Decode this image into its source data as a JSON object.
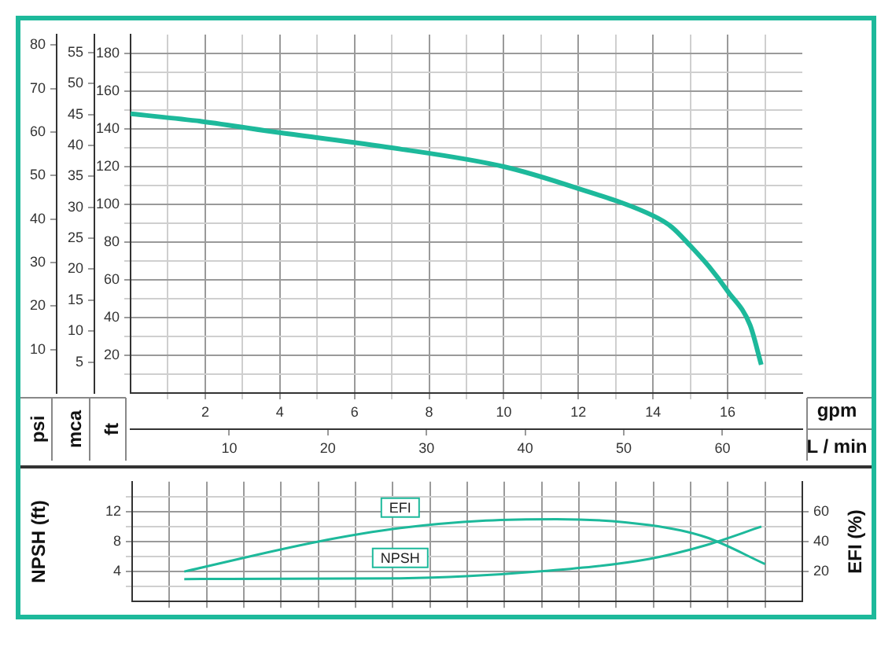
{
  "chart_data": [
    {
      "type": "line",
      "xlabel": "gpm",
      "x2label": "L / min",
      "ylabel": "ft",
      "y2label": "mca",
      "y3label": "psi",
      "xlim": [
        0,
        18
      ],
      "xticks": [
        {
          "value": 1,
          "label": null
        },
        2,
        {
          "value": 3,
          "label": null
        },
        4,
        {
          "value": 5,
          "label": null
        },
        6,
        {
          "value": 7,
          "label": null
        },
        8,
        {
          "value": 9,
          "label": null
        },
        10,
        {
          "value": 11,
          "label": null
        },
        12,
        {
          "value": 13,
          "label": null
        },
        14,
        {
          "value": 15,
          "label": null
        },
        16,
        {
          "value": 17,
          "label": null
        }
      ],
      "x2lim": [
        0,
        68.1
      ],
      "x2ticks": [
        10,
        20,
        30,
        40,
        50,
        60
      ],
      "ylim": [
        0,
        190
      ],
      "yticks": [
        {
          "value": 10,
          "label": null
        },
        20,
        {
          "value": 30,
          "label": null
        },
        40,
        {
          "value": 50,
          "label": null
        },
        60,
        {
          "value": 70,
          "label": null
        },
        80,
        {
          "value": 90,
          "label": null
        },
        100,
        {
          "value": 110,
          "label": null
        },
        120,
        {
          "value": 130,
          "label": null
        },
        140,
        {
          "value": 150,
          "label": null
        },
        160,
        {
          "value": 170,
          "label": null
        },
        180
      ],
      "y2lim": [
        0,
        57.9
      ],
      "y2ticks": [
        5,
        10,
        15,
        20,
        25,
        30,
        35,
        40,
        45,
        50,
        55
      ],
      "y3lim": [
        0,
        82.4
      ],
      "y3ticks": [
        10,
        20,
        30,
        40,
        50,
        60,
        70,
        80
      ],
      "grid": true,
      "legend": false,
      "marker": "none",
      "series": [
        {
          "color": "#1db99b",
          "x": [
            0,
            1.9,
            4,
            7,
            10,
            11.9,
            14,
            14.5,
            15,
            15.5,
            16,
            16.6,
            16.9
          ],
          "values": [
            148,
            144,
            138,
            130,
            120,
            109,
            94,
            88,
            78,
            67,
            54,
            36,
            15
          ]
        }
      ]
    },
    {
      "type": "line",
      "ylabel": "NPSH (ft)",
      "y2label": "EFI (%)",
      "xlim": [
        0,
        18
      ],
      "xticks": [
        1,
        2,
        3,
        4,
        5,
        6,
        7,
        8,
        9,
        10,
        11,
        12,
        13,
        14,
        15,
        16,
        17
      ],
      "tick_labels": "y",
      "ylim": [
        0,
        16
      ],
      "yticks": [
        {
          "value": 2,
          "label": null
        },
        4,
        {
          "value": 6,
          "label": null
        },
        8,
        {
          "value": 10,
          "label": null
        },
        12,
        {
          "value": 14,
          "label": null
        }
      ],
      "y2lim": [
        0,
        80
      ],
      "y2ticks": [
        20,
        40,
        60
      ],
      "grid": true,
      "legend": false,
      "marker": "none",
      "series": [
        {
          "name": "EFI",
          "axis": "y2",
          "color": "#1db99b",
          "x": [
            1.4,
            5,
            7.2,
            9.5,
            11.4,
            13.9,
            15.4,
            17
          ],
          "values": [
            20,
            40,
            49,
            54,
            55,
            51,
            43,
            25
          ]
        },
        {
          "name": "NPSH",
          "color": "#1db99b",
          "x": [
            1.4,
            7.2,
            10.9,
            13.9,
            15.4,
            16.9
          ],
          "values": [
            3,
            3.1,
            4,
            5.7,
            7.5,
            10
          ]
        }
      ]
    }
  ]
}
